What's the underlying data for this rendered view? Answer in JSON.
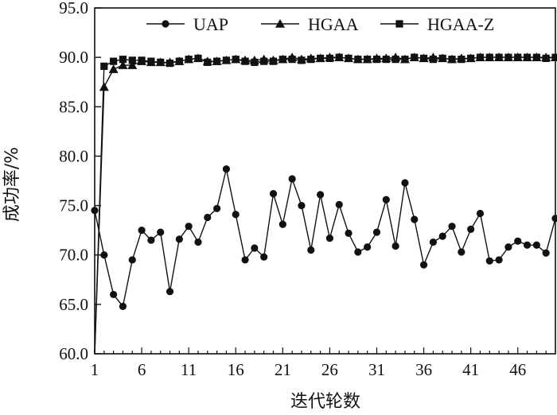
{
  "chart_data": {
    "type": "line",
    "title": "",
    "xlabel": "迭代轮数",
    "ylabel": "成功率/%",
    "xlim": [
      1,
      50
    ],
    "ylim": [
      60,
      95
    ],
    "xticks": [
      1,
      6,
      11,
      16,
      21,
      26,
      31,
      36,
      41,
      46
    ],
    "yticks": [
      "60.0",
      "65.0",
      "70.0",
      "75.0",
      "80.0",
      "85.0",
      "90.0",
      "95.0"
    ],
    "legend_position": "top-right",
    "grid": false,
    "series": [
      {
        "name": "UAP",
        "marker": "circle",
        "x": [
          1,
          2,
          3,
          4,
          5,
          6,
          7,
          8,
          9,
          10,
          11,
          12,
          13,
          14,
          15,
          16,
          17,
          18,
          19,
          20,
          21,
          22,
          23,
          24,
          25,
          26,
          27,
          28,
          29,
          30,
          31,
          32,
          33,
          34,
          35,
          36,
          37,
          38,
          39,
          40,
          41,
          42,
          43,
          44,
          45,
          46,
          47,
          48,
          49,
          50
        ],
        "values": [
          74.5,
          70.0,
          66.0,
          64.8,
          69.5,
          72.5,
          71.5,
          72.3,
          66.3,
          71.6,
          72.9,
          71.3,
          73.8,
          74.7,
          78.7,
          74.1,
          69.5,
          70.7,
          69.8,
          76.2,
          73.1,
          77.7,
          75.0,
          70.5,
          76.1,
          71.7,
          75.1,
          72.2,
          70.3,
          70.8,
          72.3,
          75.6,
          70.9,
          77.3,
          73.6,
          69.0,
          71.3,
          71.9,
          72.9,
          70.3,
          72.6,
          74.2,
          69.4,
          69.5,
          70.8,
          71.4,
          71.0,
          71.0,
          70.2,
          73.7
        ]
      },
      {
        "name": "HGAA",
        "marker": "triangle",
        "x": [
          1,
          2,
          3,
          4,
          5,
          6,
          7,
          8,
          9,
          10,
          11,
          12,
          13,
          14,
          15,
          16,
          17,
          18,
          19,
          20,
          21,
          22,
          23,
          24,
          25,
          26,
          27,
          28,
          29,
          30,
          31,
          32,
          33,
          34,
          35,
          36,
          37,
          38,
          39,
          40,
          41,
          42,
          43,
          44,
          45,
          46,
          47,
          48,
          49,
          50
        ],
        "values": [
          60.0,
          87.0,
          88.8,
          89.2,
          89.2,
          89.6,
          89.5,
          89.5,
          89.5,
          89.6,
          89.8,
          89.9,
          89.6,
          89.6,
          89.7,
          89.8,
          89.7,
          89.7,
          89.8,
          89.7,
          89.8,
          90.0,
          89.8,
          89.9,
          89.9,
          90.0,
          90.0,
          89.9,
          89.8,
          89.8,
          89.9,
          89.9,
          90.0,
          89.8,
          90.0,
          89.9,
          90.0,
          89.9,
          89.8,
          89.9,
          89.9,
          90.0,
          90.0,
          90.0,
          90.0,
          90.0,
          90.0,
          90.0,
          90.0,
          90.0
        ]
      },
      {
        "name": "HGAA-Z",
        "marker": "square",
        "x": [
          1,
          2,
          3,
          4,
          5,
          6,
          7,
          8,
          9,
          10,
          11,
          12,
          13,
          14,
          15,
          16,
          17,
          18,
          19,
          20,
          21,
          22,
          23,
          24,
          25,
          26,
          27,
          28,
          29,
          30,
          31,
          32,
          33,
          34,
          35,
          36,
          37,
          38,
          39,
          40,
          41,
          42,
          43,
          44,
          45,
          46,
          47,
          48,
          49,
          50
        ],
        "values": [
          60.0,
          89.1,
          89.6,
          89.8,
          89.7,
          89.7,
          89.6,
          89.5,
          89.4,
          89.6,
          89.8,
          89.9,
          89.5,
          89.6,
          89.7,
          89.8,
          89.6,
          89.5,
          89.6,
          89.6,
          89.8,
          89.8,
          89.7,
          89.8,
          89.9,
          89.9,
          90.0,
          89.9,
          89.8,
          89.8,
          89.8,
          89.8,
          89.8,
          89.8,
          90.0,
          89.9,
          89.8,
          89.9,
          89.8,
          89.8,
          89.9,
          90.0,
          90.0,
          90.0,
          90.0,
          90.0,
          90.0,
          90.0,
          89.9,
          90.0
        ]
      }
    ]
  }
}
